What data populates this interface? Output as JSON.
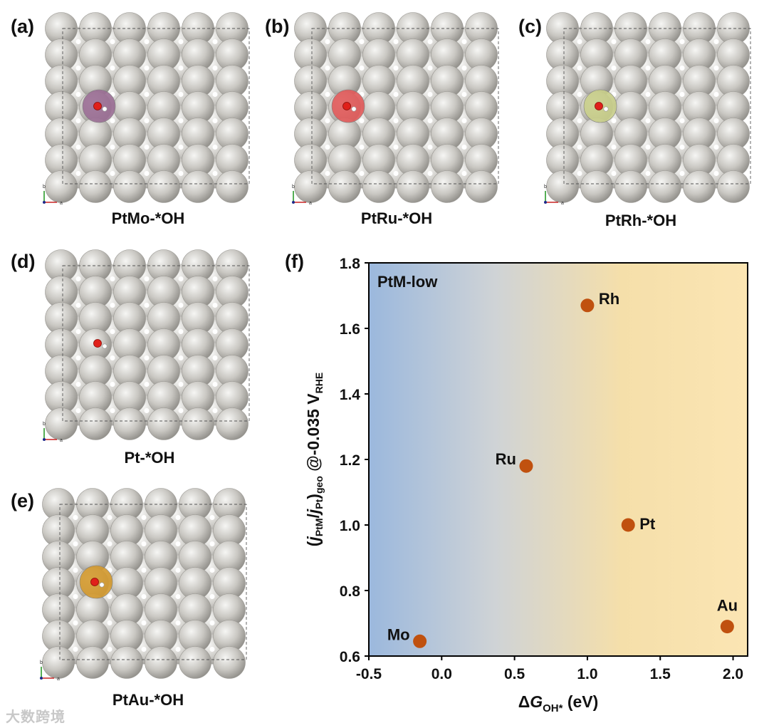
{
  "panels": [
    {
      "id": "a",
      "label": "(a)",
      "caption": "PtMo-*OH",
      "dopant_color": "#9b6e95"
    },
    {
      "id": "b",
      "label": "(b)",
      "caption": "PtRu-*OH",
      "dopant_color": "#e25a5a"
    },
    {
      "id": "c",
      "label": "(c)",
      "caption": "PtRh-*OH",
      "dopant_color": "#c9cf8a"
    },
    {
      "id": "d",
      "label": "(d)",
      "caption": "Pt-*OH",
      "dopant_color": ""
    },
    {
      "id": "e",
      "label": "(e)",
      "caption": "PtAu-*OH",
      "dopant_color": "#d49a2e"
    }
  ],
  "axis_glyphs": {
    "b": "b",
    "a": "a"
  },
  "chart_label": "(f)",
  "chart_data": {
    "type": "scatter",
    "title": "",
    "annotation": "PtM-low",
    "xlabel": {
      "prefix": "Δ",
      "italic": "G",
      "sub": "OH*",
      "suffix": " (eV)"
    },
    "ylabel": {
      "p1": "(",
      "j1": "j",
      "s1": "PtM",
      "p2": "/",
      "j2": "j",
      "s2": "Pt",
      "p3": ")",
      "s3": "geo",
      "p4": " @-0.035 V",
      "s4": "RHE"
    },
    "xlim": [
      -0.5,
      2.1
    ],
    "ylim": [
      0.6,
      1.8
    ],
    "xticks": [
      "-0.5",
      "0.0",
      "0.5",
      "1.0",
      "1.5",
      "2.0"
    ],
    "yticks": [
      "0.6",
      "0.8",
      "1.0",
      "1.2",
      "1.4",
      "1.6",
      "1.8"
    ],
    "points": [
      {
        "name": "Mo",
        "x": -0.15,
        "y": 0.645
      },
      {
        "name": "Ru",
        "x": 0.58,
        "y": 1.18
      },
      {
        "name": "Rh",
        "x": 1.0,
        "y": 1.67
      },
      {
        "name": "Pt",
        "x": 1.28,
        "y": 1.0
      },
      {
        "name": "Au",
        "x": 1.96,
        "y": 0.69
      }
    ],
    "marker_color": "#c0510f",
    "gradient": [
      "#9bb8dd",
      "#cfd3d6",
      "#f5dfaa",
      "#fbe5b3"
    ]
  },
  "watermark": "大数跨境"
}
